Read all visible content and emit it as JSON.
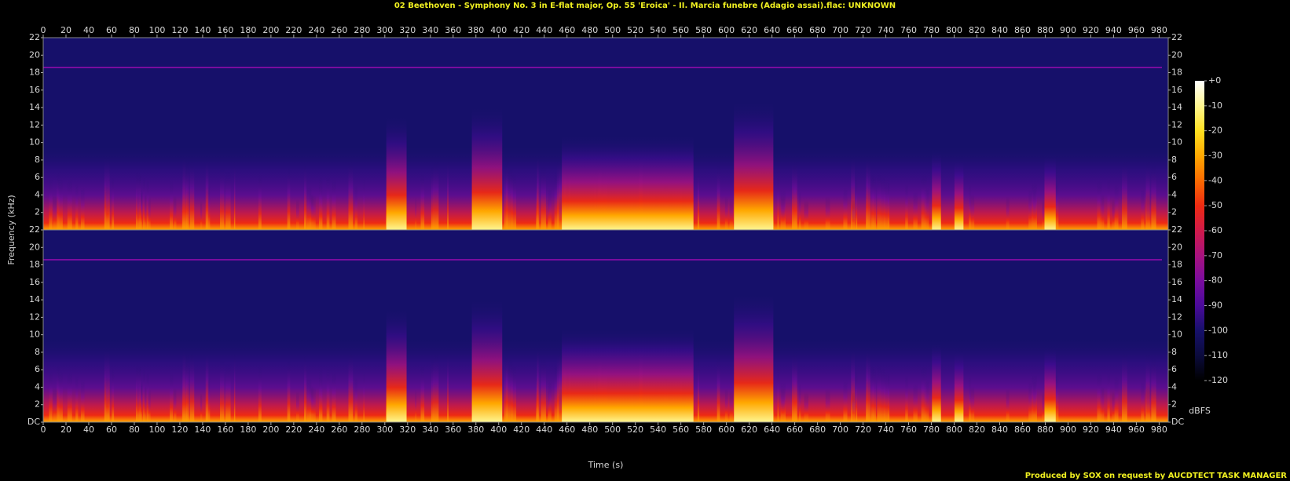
{
  "chart_data": {
    "type": "spectrogram",
    "title": "02 Beethoven - Symphony No. 3 in E-flat major, Op. 55 'Eroica' - II. Marcia funebre (Adagio assai).flac: UNKNOWN",
    "x_label": "Time (s)",
    "y_label": "Frequency (kHz)",
    "xlim": [
      0,
      988
    ],
    "xticks": [
      0,
      20,
      40,
      60,
      80,
      100,
      120,
      140,
      160,
      180,
      200,
      220,
      240,
      260,
      280,
      300,
      320,
      340,
      360,
      380,
      400,
      420,
      440,
      460,
      480,
      500,
      520,
      540,
      560,
      580,
      600,
      620,
      640,
      660,
      680,
      700,
      720,
      740,
      760,
      780,
      800,
      820,
      840,
      860,
      880,
      900,
      920,
      940,
      960,
      980
    ],
    "panels": [
      {
        "ylim": [
          0,
          22
        ],
        "yticks": [
          2,
          4,
          6,
          8,
          10,
          12,
          14,
          16,
          18,
          20,
          22
        ]
      },
      {
        "ylim": [
          0,
          22
        ],
        "yticks": [
          {
            "value": 0,
            "label": "DC"
          },
          2,
          4,
          6,
          8,
          10,
          12,
          14,
          16,
          18,
          20,
          22
        ]
      }
    ],
    "colorbar": {
      "label": "dBFS",
      "lim": [
        -120,
        0
      ],
      "ticks": [
        {
          "value": 0,
          "label": "+0"
        },
        -10,
        -20,
        -30,
        -40,
        -50,
        -60,
        -70,
        -80,
        -90,
        -100,
        -110,
        -120
      ],
      "colors": [
        "#000000",
        "#0b0b3c",
        "#16106a",
        "#4a0a9a",
        "#7a0c9e",
        "#a8127e",
        "#d01a4a",
        "#ee2a12",
        "#fb6a00",
        "#ffa800",
        "#ffe020",
        "#fff690",
        "#ffffff"
      ]
    },
    "footer": "Produced by SOX on request by AUCDTECT TASK MANAGER"
  }
}
